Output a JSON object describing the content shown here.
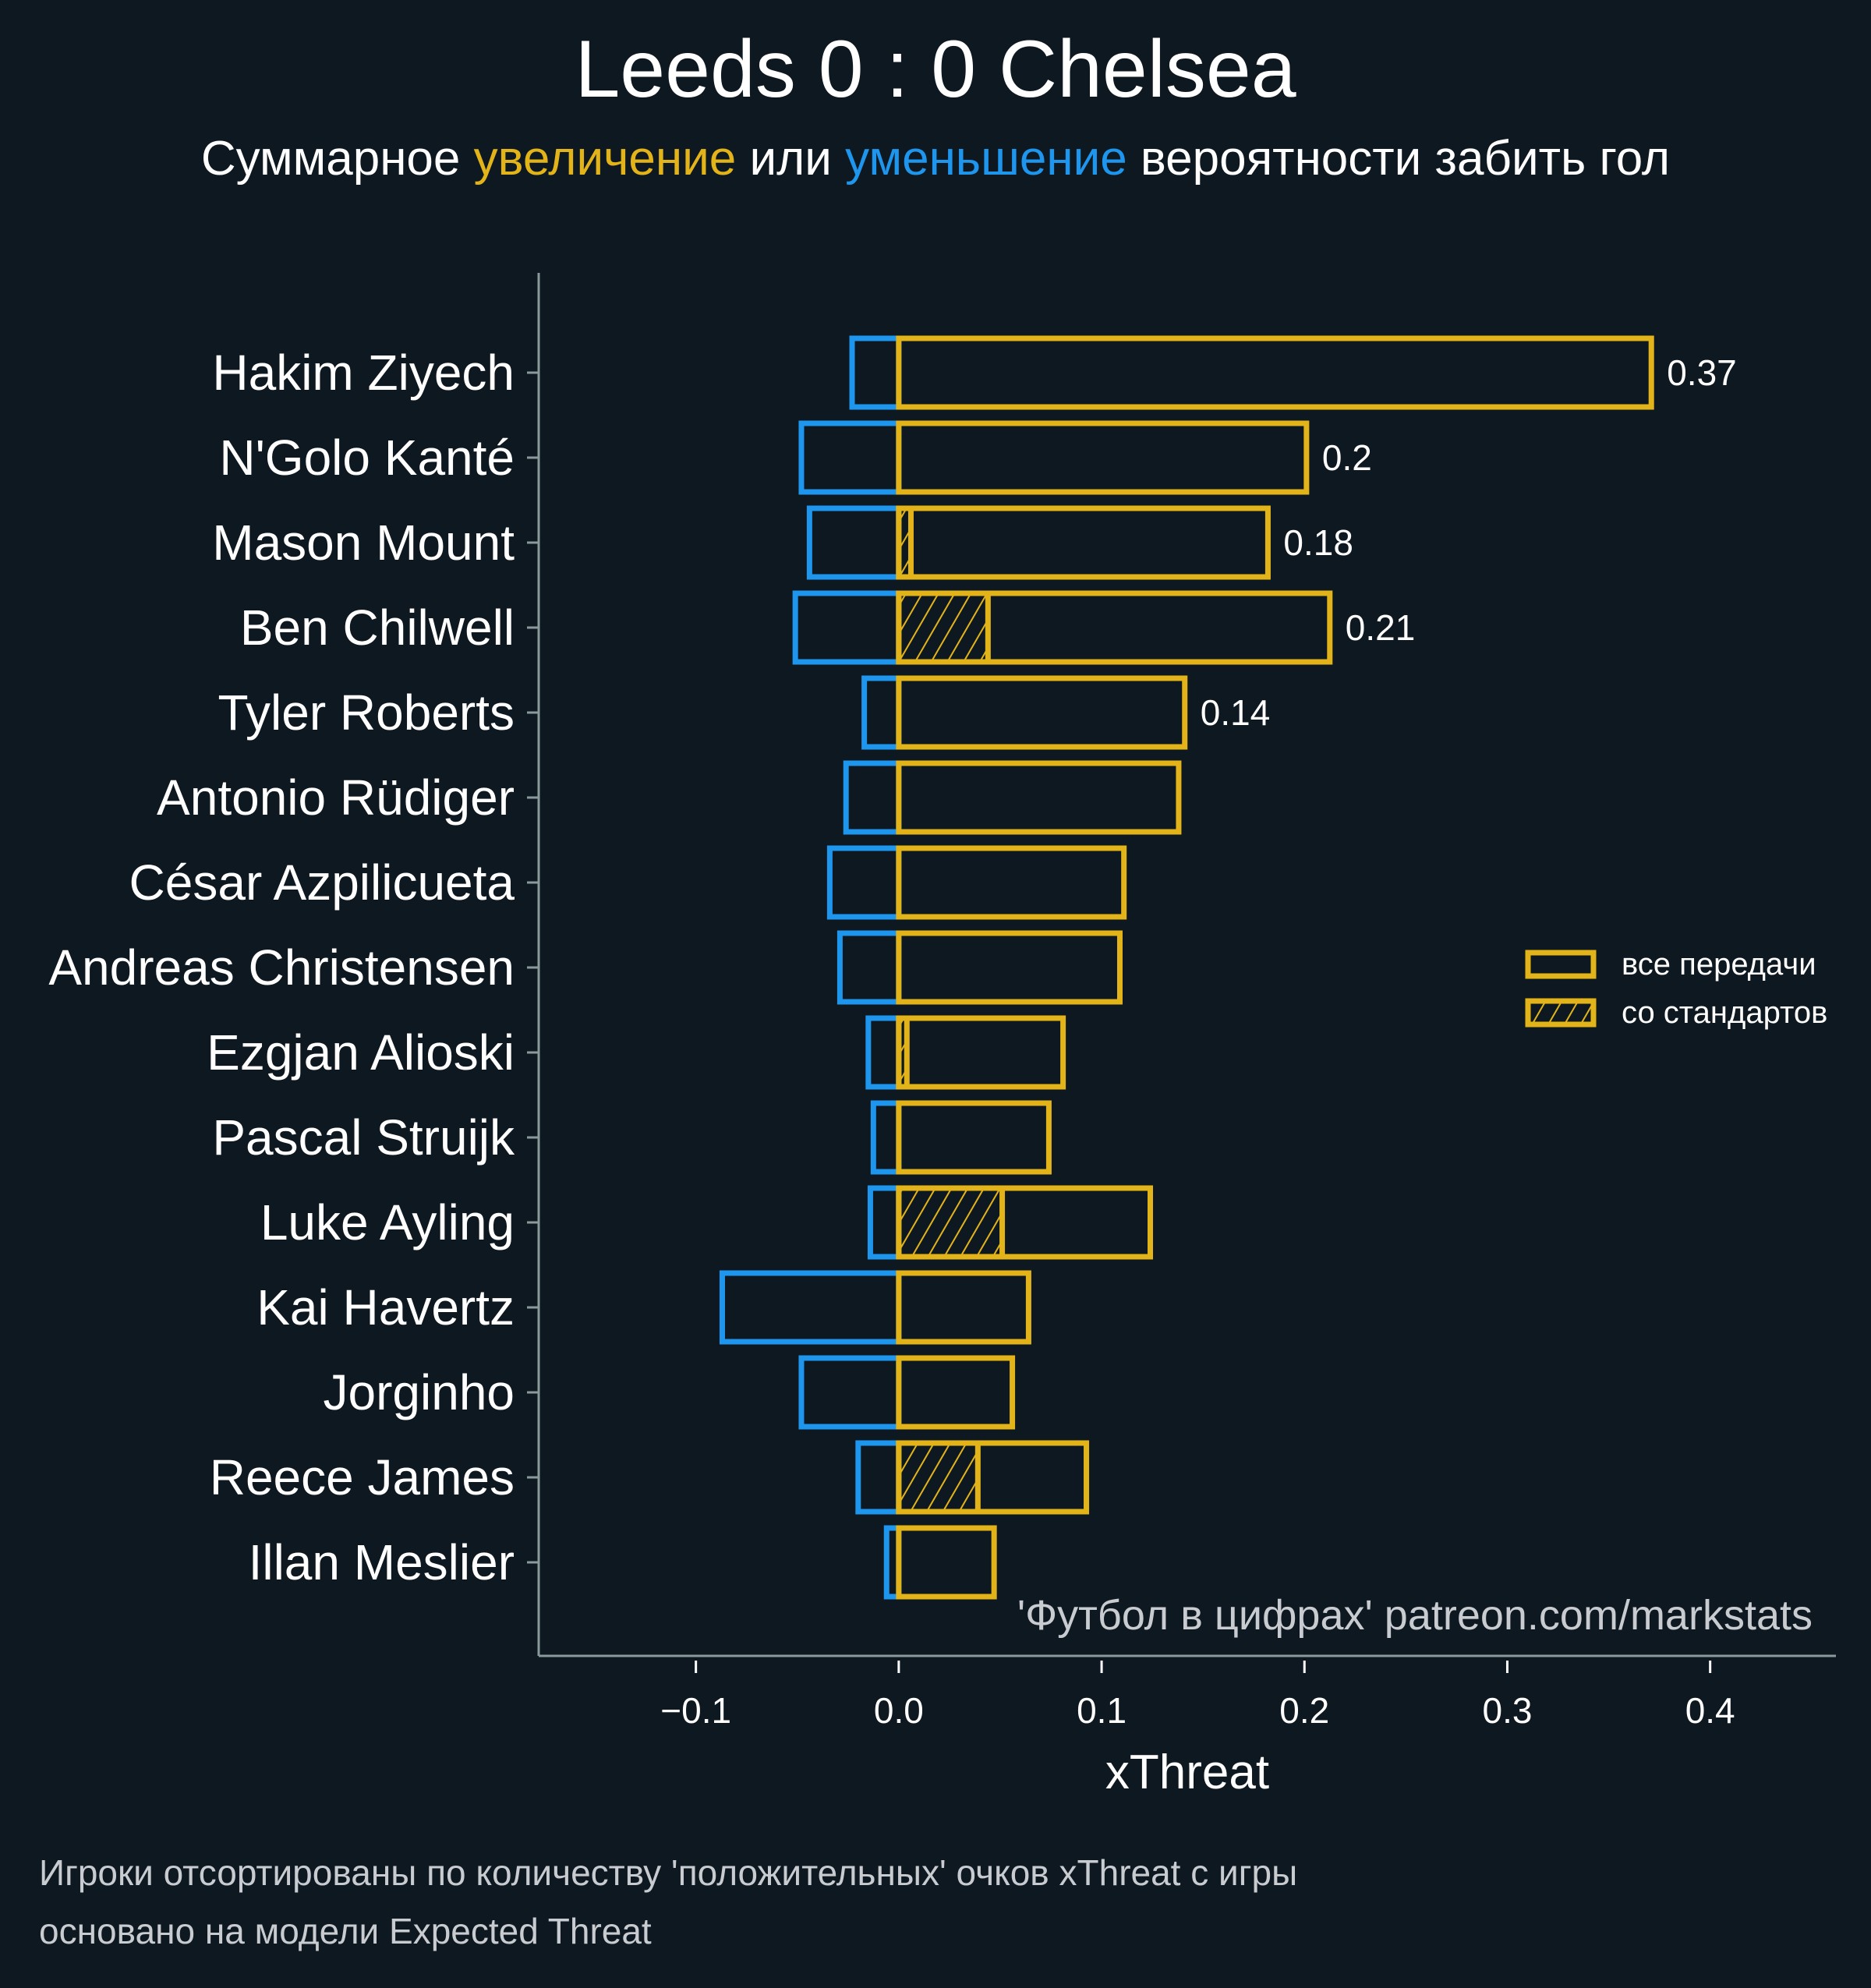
{
  "title": "Leeds 0 : 0 Chelsea",
  "subtitle": {
    "parts": [
      {
        "text": "Суммарное ",
        "role": "plain"
      },
      {
        "text": "увеличение",
        "role": "increase"
      },
      {
        "text": " или ",
        "role": "plain"
      },
      {
        "text": "уменьшение",
        "role": "decrease"
      },
      {
        "text": " вероятности забить гол",
        "role": "plain"
      }
    ]
  },
  "colors": {
    "background": "#0e1820",
    "increase": "#e3b41a",
    "decrease": "#1e96ee",
    "axis": "#8a9a9a",
    "text": "#ffffff",
    "muted_text": "#c8ccd0"
  },
  "watermark": "'Футбол в цифрах' patreon.com/markstats",
  "footer": {
    "line1": "Игроки отсортированы по количеству 'положительных' очков xThreat с игры",
    "line2": "основано на модели Expected Threat"
  },
  "chart_data": {
    "type": "bar",
    "orientation": "horizontal",
    "title": "Leeds 0 : 0 Chelsea",
    "subtitle": "Суммарное увеличение или уменьшение вероятности забить гол",
    "xlabel": "xThreat",
    "ylabel": "",
    "xlim": [
      -0.1775,
      0.462
    ],
    "xticks": [
      -0.1,
      0.0,
      0.1,
      0.2,
      0.3,
      0.4
    ],
    "xtick_labels": [
      "−0.1",
      "0.0",
      "0.1",
      "0.2",
      "0.3",
      "0.4"
    ],
    "grid": false,
    "legend": {
      "placement": "right",
      "entries": [
        {
          "label": "все передачи",
          "style": "outline"
        },
        {
          "label": "со стандартов",
          "style": "hatched"
        }
      ]
    },
    "categories": [
      "Hakim Ziyech",
      "N'Golo Kanté",
      "Mason Mount",
      "Ben Chilwell",
      "Tyler Roberts",
      "Antonio Rüdiger",
      "César Azpilicueta",
      "Andreas Christensen",
      "Ezgjan Alioski",
      "Pascal Struijk",
      "Luke Ayling",
      "Kai Havertz",
      "Jorginho",
      "Reece James",
      "Illan Meslier"
    ],
    "series": [
      {
        "name": "positive (все передачи)",
        "color": "#e3b41a",
        "values": [
          0.371,
          0.201,
          0.182,
          0.2125,
          0.141,
          0.138,
          0.111,
          0.109,
          0.081,
          0.074,
          0.124,
          0.064,
          0.056,
          0.0925,
          0.047
        ]
      },
      {
        "name": "positive set pieces (со стандартов)",
        "color": "#e3b41a",
        "hatched": true,
        "values": [
          0,
          0,
          0.006,
          0.044,
          0,
          0,
          0,
          0,
          0.004,
          0,
          0.051,
          0,
          0,
          0.039,
          0
        ]
      },
      {
        "name": "negative",
        "color": "#1e96ee",
        "values": [
          -0.023,
          -0.048,
          -0.044,
          -0.051,
          -0.017,
          -0.026,
          -0.034,
          -0.029,
          -0.015,
          -0.0125,
          -0.014,
          -0.087,
          -0.048,
          -0.02,
          -0.006
        ]
      }
    ],
    "annotations": [
      {
        "category": "Hakim Ziyech",
        "text": "0.37"
      },
      {
        "category": "N'Golo Kanté",
        "text": "0.2"
      },
      {
        "category": "Mason Mount",
        "text": "0.18"
      },
      {
        "category": "Ben Chilwell",
        "text": "0.21"
      },
      {
        "category": "Tyler Roberts",
        "text": "0.14"
      }
    ]
  }
}
